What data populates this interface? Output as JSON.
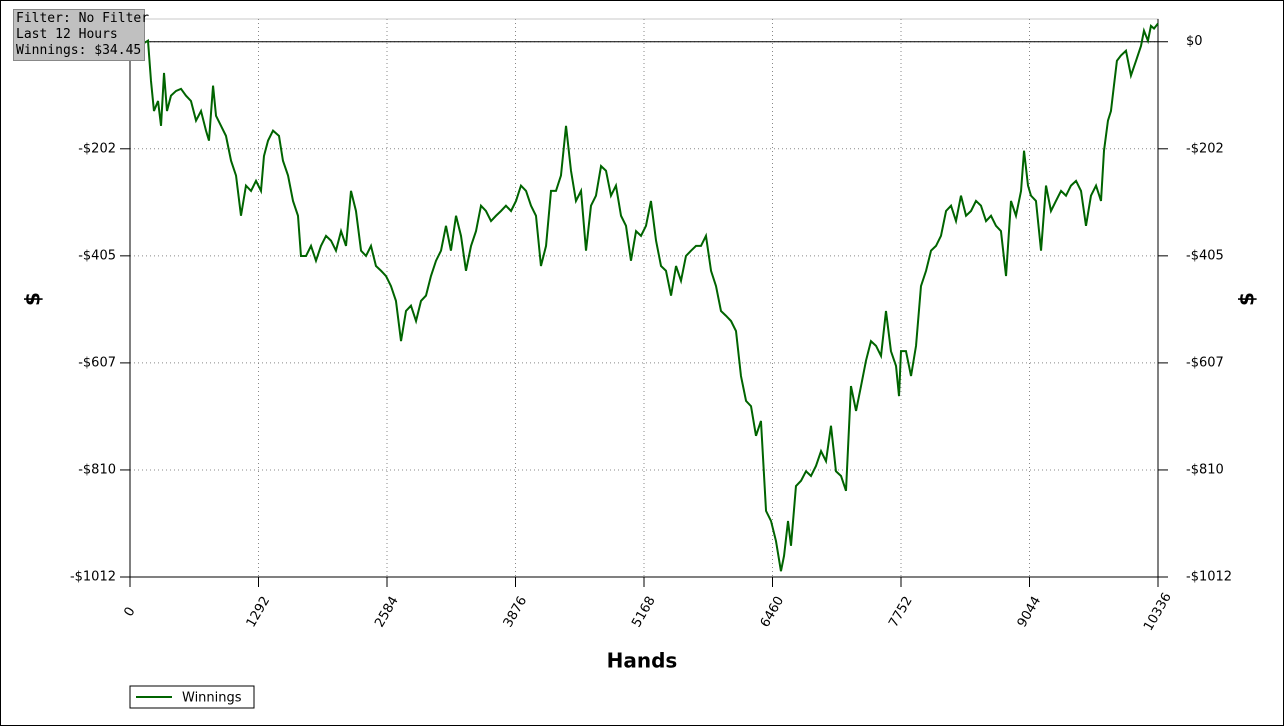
{
  "chart_data": {
    "type": "line",
    "info": [
      "Filter: No Filter",
      "Last 12 Hours",
      "Winnings: $34.45"
    ],
    "xlabel": "Hands",
    "ylabel": "$",
    "y2label": "$",
    "xlim": [
      0,
      10336
    ],
    "ylim": [
      -1012,
      43
    ],
    "xticks": [
      0,
      1292,
      2584,
      3876,
      5168,
      6460,
      7752,
      9044,
      10336
    ],
    "yticks": [
      {
        "value": 0,
        "label": "$0"
      },
      {
        "value": -202.4,
        "label": "-$202"
      },
      {
        "value": -404.8,
        "label": "-$405"
      },
      {
        "value": -607.2,
        "label": "-$607"
      },
      {
        "value": -809.6,
        "label": "-$810"
      },
      {
        "value": -1012,
        "label": "-$1012"
      }
    ],
    "grid": true,
    "zero_line": true,
    "legend": "bottom-left",
    "series": [
      {
        "name": "Winnings",
        "color": "#006400",
        "x": [
          0,
          111,
          181,
          211,
          241,
          282,
          312,
          342,
          372,
          412,
          463,
          513,
          563,
          613,
          664,
          714,
          764,
          794,
          835,
          865,
          915,
          965,
          1016,
          1066,
          1116,
          1166,
          1217,
          1267,
          1317,
          1347,
          1388,
          1438,
          1498,
          1538,
          1589,
          1639,
          1689,
          1719,
          1770,
          1820,
          1870,
          1920,
          1971,
          2021,
          2071,
          2122,
          2172,
          2222,
          2272,
          2323,
          2373,
          2423,
          2473,
          2524,
          2574,
          2624,
          2674,
          2725,
          2775,
          2825,
          2876,
          2926,
          2976,
          3026,
          3077,
          3127,
          3177,
          3227,
          3278,
          3328,
          3378,
          3429,
          3479,
          3529,
          3579,
          3630,
          3680,
          3730,
          3780,
          3831,
          3881,
          3931,
          3982,
          4032,
          4082,
          4132,
          4183,
          4233,
          4283,
          4333,
          4384,
          4434,
          4484,
          4535,
          4585,
          4635,
          4685,
          4736,
          4786,
          4836,
          4886,
          4937,
          4987,
          5037,
          5088,
          5138,
          5188,
          5238,
          5289,
          5339,
          5389,
          5440,
          5490,
          5540,
          5590,
          5641,
          5691,
          5741,
          5791,
          5842,
          5892,
          5942,
          5992,
          6043,
          6093,
          6143,
          6194,
          6244,
          6294,
          6344,
          6395,
          6445,
          6495,
          6545,
          6576,
          6616,
          6646,
          6696,
          6747,
          6797,
          6847,
          6897,
          6948,
          6998,
          7048,
          7098,
          7149,
          7199,
          7249,
          7300,
          7350,
          7400,
          7450,
          7501,
          7551,
          7601,
          7651,
          7702,
          7732,
          7752,
          7802,
          7853,
          7903,
          7953,
          8004,
          8054,
          8104,
          8154,
          8205,
          8255,
          8305,
          8355,
          8406,
          8456,
          8506,
          8556,
          8607,
          8657,
          8707,
          8757,
          8808,
          8858,
          8908,
          8959,
          8989,
          9029,
          9059,
          9109,
          9160,
          9210,
          9260,
          9310,
          9361,
          9411,
          9461,
          9512,
          9562,
          9612,
          9662,
          9713,
          9763,
          9793,
          9833,
          9863,
          9893,
          9923,
          9963,
          10014,
          10064,
          10115,
          10165,
          10195,
          10235,
          10265,
          10296,
          10336
        ],
        "values": [
          -8,
          -6,
          2,
          -74,
          -131,
          -112,
          -159,
          -59,
          -131,
          -102,
          -93,
          -89,
          -102,
          -112,
          -149,
          -131,
          -168,
          -187,
          -83,
          -140,
          -159,
          -178,
          -225,
          -253,
          -329,
          -272,
          -282,
          -263,
          -282,
          -216,
          -187,
          -168,
          -178,
          -225,
          -253,
          -301,
          -329,
          -405,
          -405,
          -386,
          -414,
          -386,
          -367,
          -376,
          -395,
          -358,
          -386,
          -282,
          -320,
          -395,
          -405,
          -386,
          -424,
          -433,
          -443,
          -462,
          -490,
          -566,
          -509,
          -499,
          -528,
          -490,
          -480,
          -443,
          -414,
          -395,
          -348,
          -395,
          -329,
          -367,
          -433,
          -386,
          -358,
          -310,
          -320,
          -339,
          -329,
          -320,
          -310,
          -320,
          -301,
          -272,
          -282,
          -310,
          -329,
          -424,
          -386,
          -282,
          -282,
          -253,
          -159,
          -244,
          -301,
          -282,
          -395,
          -310,
          -291,
          -235,
          -244,
          -291,
          -272,
          -329,
          -348,
          -414,
          -358,
          -367,
          -348,
          -301,
          -376,
          -424,
          -433,
          -480,
          -424,
          -452,
          -405,
          -395,
          -386,
          -386,
          -367,
          -433,
          -462,
          -509,
          -518,
          -528,
          -547,
          -632,
          -679,
          -689,
          -745,
          -717,
          -887,
          -906,
          -944,
          -1001,
          -972,
          -906,
          -953,
          -840,
          -830,
          -812,
          -821,
          -802,
          -774,
          -793,
          -726,
          -812,
          -821,
          -849,
          -651,
          -698,
          -651,
          -603,
          -566,
          -575,
          -594,
          -509,
          -585,
          -613,
          -670,
          -585,
          -585,
          -632,
          -575,
          -462,
          -433,
          -395,
          -386,
          -367,
          -320,
          -310,
          -339,
          -291,
          -329,
          -320,
          -301,
          -310,
          -339,
          -329,
          -348,
          -358,
          -443,
          -301,
          -329,
          -282,
          -206,
          -272,
          -291,
          -301,
          -395,
          -272,
          -320,
          -301,
          -282,
          -291,
          -272,
          -263,
          -282,
          -348,
          -291,
          -272,
          -301,
          -206,
          -149,
          -131,
          -83,
          -36,
          -26,
          -17,
          -64,
          -36,
          -8,
          21,
          2,
          30,
          25,
          34.45
        ]
      }
    ]
  }
}
